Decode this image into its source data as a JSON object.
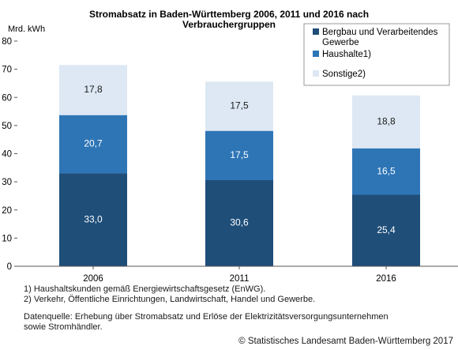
{
  "chart_data": {
    "type": "bar",
    "stacked": true,
    "title_lines": [
      "Stromabsatz in Baden-Württemberg 2006, 2011 und 2016 nach",
      "Verbrauchergruppen"
    ],
    "unit_label": "Mrd. kWh",
    "categories": [
      "2006",
      "2011",
      "2016"
    ],
    "series": [
      {
        "name": "Bergbau und Verarbeitendes Gewerbe",
        "legend_lines": [
          "Bergbau und Verarbeitendes",
          "Gewerbe"
        ],
        "values": [
          33.0,
          30.6,
          25.4
        ],
        "labels": [
          "33,0",
          "30,6",
          "25,4"
        ],
        "color": "#1f4e79"
      },
      {
        "name": "Haushalte1)",
        "legend_lines": [
          "Haushalte1)"
        ],
        "values": [
          20.7,
          17.5,
          16.5
        ],
        "labels": [
          "20,7",
          "17,5",
          "16,5"
        ],
        "color": "#2e75b6"
      },
      {
        "name": "Sonstige2)",
        "legend_lines": [
          "Sonstige2)"
        ],
        "values": [
          17.8,
          17.5,
          18.8
        ],
        "labels": [
          "17,8",
          "17,5",
          "18,8"
        ],
        "color": "#dde8f4"
      }
    ],
    "ylim": [
      0,
      80
    ],
    "yticks": [
      0,
      10,
      20,
      30,
      40,
      50,
      60,
      70,
      80
    ],
    "grid": false,
    "legend_position": "top-right"
  },
  "footnotes": [
    "1) Haushaltskunden gemäß Energiewirtschaftsgesetz (EnWG).",
    "2) Verkehr, Öffentliche Einrichtungen, Landwirtschaft, Handel und Gewerbe."
  ],
  "source_lines": [
    "Datenquelle: Erhebung über Stromabsatz und Erlöse der Elektrizitätsversorgungsunternehmen",
    "sowie Stromhändler."
  ],
  "copyright": "© Statistisches Landesamt Baden-Württemberg 2017"
}
